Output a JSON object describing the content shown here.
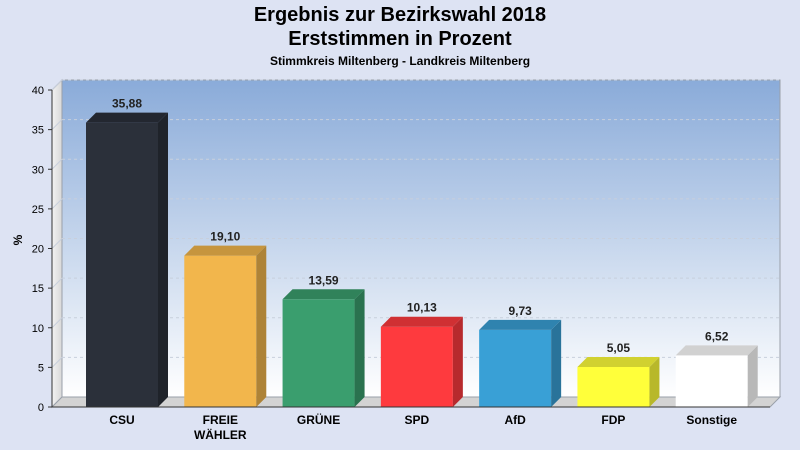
{
  "title": "Ergebnis zur Bezirkswahl 2018",
  "subtitle": "Erststimmen in Prozent",
  "subsubtitle": "Stimmkreis Miltenberg - Landkreis Miltenberg",
  "chart_data": {
    "type": "bar",
    "ylabel": "%",
    "ylim": [
      0,
      40
    ],
    "yticks": [
      0,
      5,
      10,
      15,
      20,
      25,
      30,
      35,
      40
    ],
    "grid": true,
    "categories": [
      [
        "CSU"
      ],
      [
        "FREIE",
        "WÄHLER"
      ],
      [
        "GRÜNE"
      ],
      [
        "SPD"
      ],
      [
        "AfD"
      ],
      [
        "FDP"
      ],
      [
        "Sonstige"
      ]
    ],
    "values": [
      35.88,
      19.1,
      13.59,
      10.13,
      9.73,
      5.05,
      6.52
    ],
    "labels": [
      "35,88",
      "19,10",
      "13,59",
      "10,13",
      "9,73",
      "5,05",
      "6,52"
    ],
    "colors": [
      "#2b303a",
      "#f2b64c",
      "#3a9e6e",
      "#fe3a3e",
      "#39a0d6",
      "#ffff3a",
      "#ffffff"
    ]
  }
}
